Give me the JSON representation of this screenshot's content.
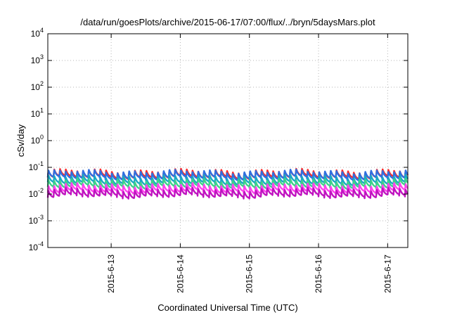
{
  "chart_data": {
    "type": "line",
    "title": "/data/run/goesPlots/archive/2015-06-17/07:00/flux/../bryn/5daysMars.plot",
    "xlabel": "Coordinated Universal Time (UTC)",
    "ylabel": "cSv/day",
    "yscale": "log",
    "ylim": [
      0.0001,
      10000
    ],
    "xlim": [
      "2015-06-12T02:00",
      "2015-06-17T07:00"
    ],
    "x_ticks": [
      "2015-6-13",
      "2015-6-14",
      "2015-6-15",
      "2015-6-16",
      "2015-6-17"
    ],
    "y_ticks": [
      {
        "base": "10",
        "exp": "4",
        "value": 10000
      },
      {
        "base": "10",
        "exp": "3",
        "value": 1000
      },
      {
        "base": "10",
        "exp": "2",
        "value": 100
      },
      {
        "base": "10",
        "exp": "1",
        "value": 10
      },
      {
        "base": "10",
        "exp": "0",
        "value": 1
      },
      {
        "base": "10",
        "exp": "-1",
        "value": 0.1
      },
      {
        "base": "10",
        "exp": "-2",
        "value": 0.01
      },
      {
        "base": "10",
        "exp": "-3",
        "value": 0.001
      },
      {
        "base": "10",
        "exp": "-4",
        "value": 0.0001
      }
    ],
    "grid": true,
    "cycles_per_day": 12,
    "series": [
      {
        "color": "#ff2a2a",
        "base": 0.075
      },
      {
        "color": "#2f6fe0",
        "base": 0.07
      },
      {
        "color": "#1aa8c4",
        "base": 0.045
      },
      {
        "color": "#3ed18a",
        "base": 0.033
      },
      {
        "color": "#ff44ee",
        "base": 0.022
      },
      {
        "color": "#c013c0",
        "base": 0.015
      }
    ]
  }
}
